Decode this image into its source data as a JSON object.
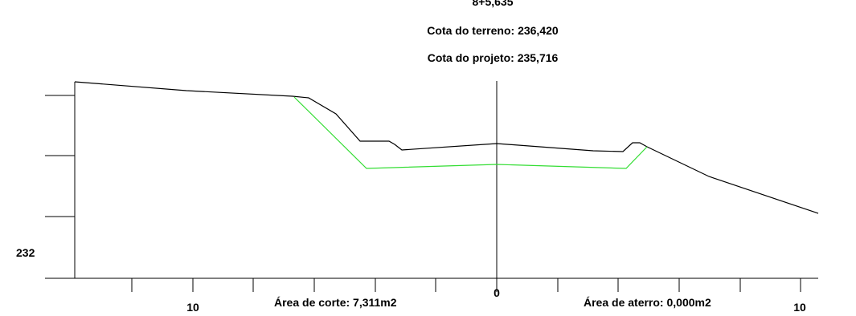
{
  "header": {
    "station": "8+5,635",
    "terrain_elevation": "Cota do terreno: 236,420",
    "design_elevation": "Cota do projeto: 235,716"
  },
  "axes": {
    "y_label": "232",
    "x_labels": [
      "10",
      "0",
      "10"
    ]
  },
  "areas": {
    "cut": "Área de corte: 7,311m2",
    "fill": "Área de aterro: 0,000m2"
  },
  "colors": {
    "terrain": "#000000",
    "design": "#33dd33",
    "background": "#ffffff"
  }
}
